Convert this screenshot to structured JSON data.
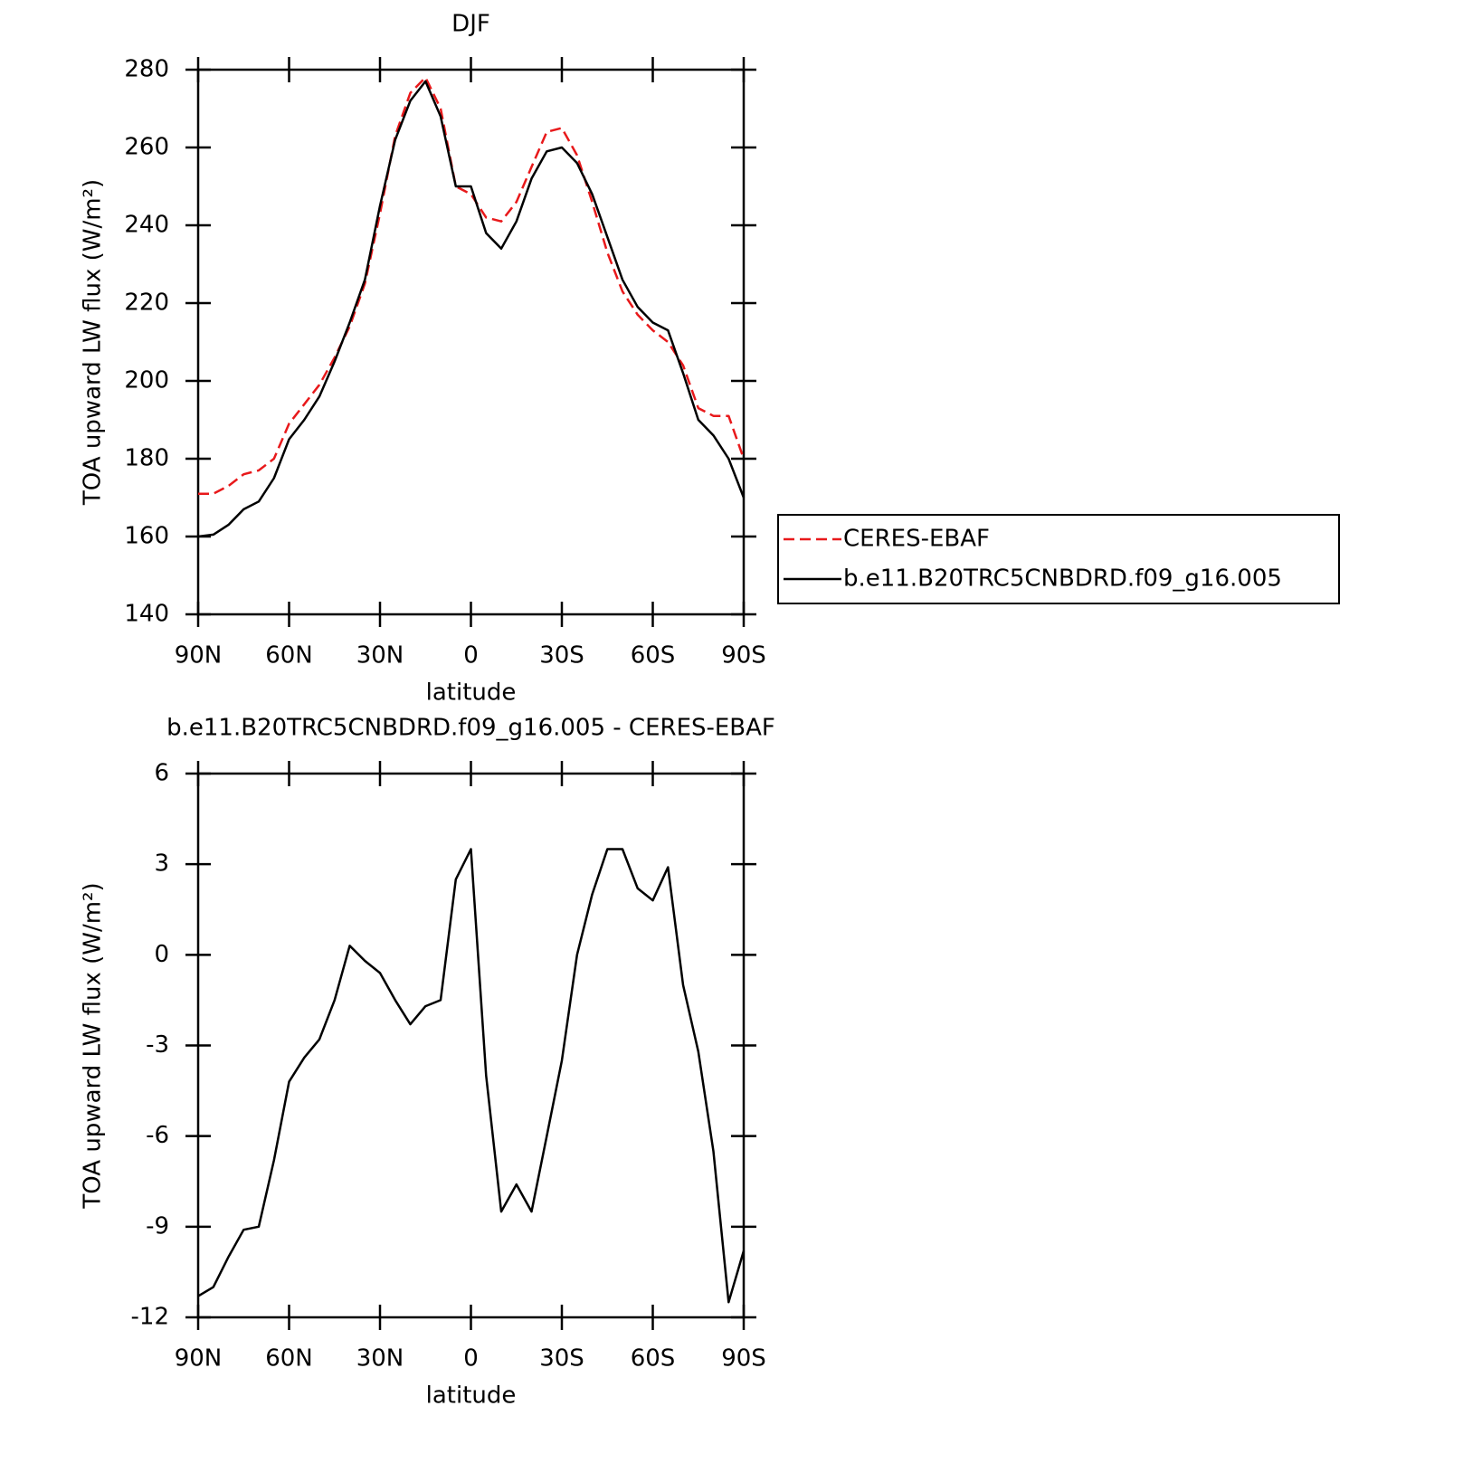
{
  "chart_data": [
    {
      "type": "line",
      "title": "DJF",
      "xlabel": "latitude",
      "ylabel": "TOA upward LW flux (W/m²)",
      "x": [
        90,
        85,
        80,
        75,
        70,
        65,
        60,
        55,
        50,
        45,
        40,
        35,
        30,
        25,
        20,
        15,
        10,
        5,
        0,
        -5,
        -10,
        -15,
        -20,
        -25,
        -30,
        -35,
        -40,
        -45,
        -50,
        -55,
        -60,
        -65,
        -70,
        -75,
        -80,
        -85,
        -90
      ],
      "series": [
        {
          "name": "CERES-EBAF",
          "color": "#e8191b",
          "line_style": "dashed",
          "values": [
            171,
            171,
            173,
            176,
            177,
            180,
            189,
            194,
            199,
            206,
            214,
            225,
            243,
            263,
            274,
            278,
            270,
            250,
            248,
            242,
            241,
            246,
            255,
            264,
            265,
            258,
            246,
            233,
            223,
            217,
            213,
            210,
            204,
            193,
            191,
            191,
            180
          ]
        },
        {
          "name": "b.e11.B20TRC5CNBDRD.f09_g16.005",
          "color": "#000000",
          "line_style": "solid",
          "values": [
            160,
            160.5,
            163,
            167,
            169,
            175,
            185,
            190,
            196,
            205,
            215,
            226,
            245,
            262,
            272,
            277,
            268,
            250,
            250,
            238,
            234,
            241,
            252,
            259,
            260,
            256,
            248,
            237,
            226,
            219,
            215,
            213,
            202,
            190,
            186,
            180,
            170
          ]
        }
      ],
      "xlim": [
        90,
        -90
      ],
      "xticks": [
        {
          "value": 90,
          "label": "90N"
        },
        {
          "value": 60,
          "label": "60N"
        },
        {
          "value": 30,
          "label": "30N"
        },
        0,
        {
          "value": -30,
          "label": "30S"
        },
        {
          "value": -60,
          "label": "60S"
        },
        {
          "value": -90,
          "label": "90S"
        }
      ],
      "ylim": [
        140,
        280
      ],
      "yticks": [
        140,
        160,
        180,
        200,
        220,
        240,
        260,
        280
      ],
      "grid": false,
      "legend": "right"
    },
    {
      "type": "line",
      "title": "b.e11.B20TRC5CNBDRD.f09_g16.005 - CERES-EBAF",
      "xlabel": "latitude",
      "ylabel": "TOA upward LW flux (W/m²)",
      "x": [
        90,
        85,
        80,
        75,
        70,
        65,
        60,
        55,
        50,
        45,
        40,
        35,
        30,
        25,
        20,
        15,
        10,
        5,
        0,
        -5,
        -10,
        -15,
        -20,
        -25,
        -30,
        -35,
        -40,
        -45,
        -50,
        -55,
        -60,
        -65,
        -70,
        -75,
        -80,
        -85,
        -90
      ],
      "series": [
        {
          "color": "#000000",
          "line_style": "solid",
          "values": [
            -11.3,
            -11,
            -10,
            -9.1,
            -9,
            -6.8,
            -4.2,
            -3.4,
            -2.8,
            -1.5,
            0.3,
            -0.2,
            -0.6,
            -1.5,
            -2.3,
            -1.7,
            -1.5,
            2.5,
            3.5,
            -4,
            -8.5,
            -7.6,
            -8.5,
            -6,
            -3.5,
            0,
            2,
            3.5,
            3.5,
            2.2,
            1.8,
            2.9,
            -1,
            -3.2,
            -6.5,
            -11.5,
            -9.8
          ]
        }
      ],
      "xlim": [
        90,
        -90
      ],
      "xticks": [
        {
          "value": 90,
          "label": "90N"
        },
        {
          "value": 60,
          "label": "60N"
        },
        {
          "value": 30,
          "label": "30N"
        },
        0,
        {
          "value": -30,
          "label": "30S"
        },
        {
          "value": -60,
          "label": "60S"
        },
        {
          "value": -90,
          "label": "90S"
        }
      ],
      "ylim": [
        -12,
        6
      ],
      "yticks": [
        -12,
        -9,
        -6,
        -3,
        0,
        3,
        6
      ],
      "grid": false
    }
  ]
}
